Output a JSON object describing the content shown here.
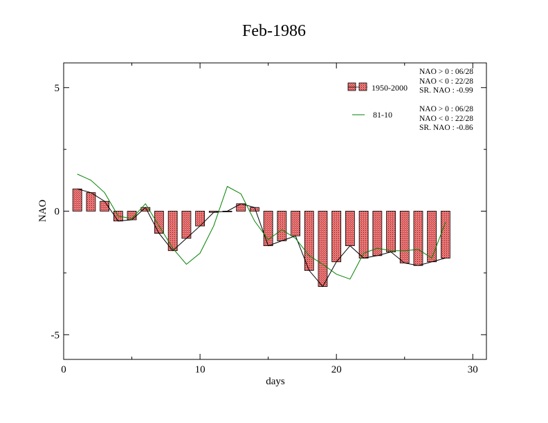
{
  "chart_data": {
    "type": "bar",
    "title": "Feb-1986",
    "xlabel": "days",
    "ylabel": "NAO",
    "xlim": [
      0,
      31
    ],
    "ylim": [
      -6,
      6
    ],
    "xticks": [
      0,
      10,
      20,
      30
    ],
    "yticks": [
      5,
      0,
      -5
    ],
    "xtick_labels": [
      "0",
      "10",
      "20",
      "30"
    ],
    "ytick_labels": [
      "5",
      "0",
      "-5"
    ],
    "grid": false,
    "legend_position": "top-right",
    "x": [
      1,
      2,
      3,
      4,
      5,
      6,
      7,
      8,
      9,
      10,
      11,
      12,
      13,
      14,
      15,
      16,
      17,
      18,
      19,
      20,
      21,
      22,
      23,
      24,
      25,
      26,
      27,
      28
    ],
    "series": [
      {
        "name": "1950-2000",
        "kind": "bar",
        "fill": "#f08080",
        "values": [
          0.9,
          0.75,
          0.4,
          -0.4,
          -0.35,
          0.15,
          -0.9,
          -1.6,
          -1.1,
          -0.6,
          -0.05,
          0.0,
          0.3,
          0.15,
          -1.4,
          -1.2,
          -1.0,
          -2.4,
          -3.05,
          -2.05,
          -1.4,
          -1.9,
          -1.8,
          -1.65,
          -2.1,
          -2.2,
          -2.05,
          -1.9
        ]
      },
      {
        "name": "81-10",
        "kind": "line",
        "color": "#008000",
        "values": [
          1.5,
          1.25,
          0.75,
          -0.2,
          -0.3,
          0.3,
          -0.6,
          -1.5,
          -2.15,
          -1.7,
          -0.6,
          1.0,
          0.7,
          -0.4,
          -1.15,
          -0.75,
          -1.1,
          -1.8,
          -2.15,
          -2.55,
          -2.75,
          -1.7,
          -1.5,
          -1.6,
          -1.6,
          -1.55,
          -1.9,
          -0.45
        ]
      }
    ],
    "legend_stats": [
      {
        "pos": "NAO > 0 : 06/28",
        "neg": "NAO < 0 : 22/28",
        "sr": "SR. NAO : -0.99"
      },
      {
        "pos": "NAO > 0 : 06/28",
        "neg": "NAO < 0 : 22/28",
        "sr": "SR. NAO : -0.86"
      }
    ]
  }
}
